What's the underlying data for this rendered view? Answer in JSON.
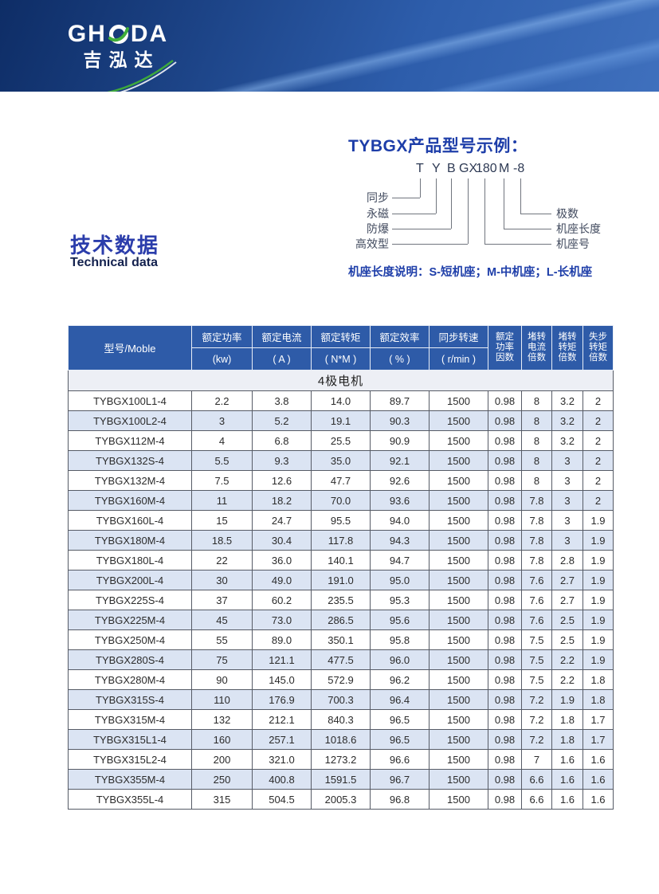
{
  "brand": {
    "logo_gh": "GH",
    "logo_da": "DA",
    "logo_cn": "吉泓达",
    "accent_green": "#3fae39"
  },
  "diagram": {
    "title": "TYBGX产品型号示例：",
    "parts": [
      "T",
      "Y",
      "B",
      "GX",
      "180",
      "M",
      "-8"
    ],
    "left_labels": [
      "同步",
      "永磁",
      "防爆",
      "高效型"
    ],
    "right_labels": [
      "极数",
      "机座长度",
      "机座号"
    ],
    "note": "机座长度说明：S-短机座；M-中机座；L-长机座"
  },
  "section_heading": {
    "cn": "技术数据",
    "en": "Technical data"
  },
  "table": {
    "model_header": "型号/Moble",
    "groups": [
      {
        "label": "额定功率",
        "unit": "(kw)"
      },
      {
        "label": "额定电流",
        "unit": "( A )"
      },
      {
        "label": "额定转矩",
        "unit": "( N*M )"
      },
      {
        "label": "额定效率",
        "unit": "( % )"
      },
      {
        "label": "同步转速",
        "unit": "( r/min )"
      }
    ],
    "narrow_headers": [
      "额定\n功率\n因数",
      "堵转\n电流\n倍数",
      "堵转\n转矩\n倍数",
      "失步\n转矩\n倍数"
    ],
    "section_row": "4极电机",
    "rows": [
      [
        "TYBGX100L1-4",
        "2.2",
        "3.8",
        "14.0",
        "89.7",
        "1500",
        "0.98",
        "8",
        "3.2",
        "2"
      ],
      [
        "TYBGX100L2-4",
        "3",
        "5.2",
        "19.1",
        "90.3",
        "1500",
        "0.98",
        "8",
        "3.2",
        "2"
      ],
      [
        "TYBGX112M-4",
        "4",
        "6.8",
        "25.5",
        "90.9",
        "1500",
        "0.98",
        "8",
        "3.2",
        "2"
      ],
      [
        "TYBGX132S-4",
        "5.5",
        "9.3",
        "35.0",
        "92.1",
        "1500",
        "0.98",
        "8",
        "3",
        "2"
      ],
      [
        "TYBGX132M-4",
        "7.5",
        "12.6",
        "47.7",
        "92.6",
        "1500",
        "0.98",
        "8",
        "3",
        "2"
      ],
      [
        "TYBGX160M-4",
        "11",
        "18.2",
        "70.0",
        "93.6",
        "1500",
        "0.98",
        "7.8",
        "3",
        "2"
      ],
      [
        "TYBGX160L-4",
        "15",
        "24.7",
        "95.5",
        "94.0",
        "1500",
        "0.98",
        "7.8",
        "3",
        "1.9"
      ],
      [
        "TYBGX180M-4",
        "18.5",
        "30.4",
        "117.8",
        "94.3",
        "1500",
        "0.98",
        "7.8",
        "3",
        "1.9"
      ],
      [
        "TYBGX180L-4",
        "22",
        "36.0",
        "140.1",
        "94.7",
        "1500",
        "0.98",
        "7.8",
        "2.8",
        "1.9"
      ],
      [
        "TYBGX200L-4",
        "30",
        "49.0",
        "191.0",
        "95.0",
        "1500",
        "0.98",
        "7.6",
        "2.7",
        "1.9"
      ],
      [
        "TYBGX225S-4",
        "37",
        "60.2",
        "235.5",
        "95.3",
        "1500",
        "0.98",
        "7.6",
        "2.7",
        "1.9"
      ],
      [
        "TYBGX225M-4",
        "45",
        "73.0",
        "286.5",
        "95.6",
        "1500",
        "0.98",
        "7.6",
        "2.5",
        "1.9"
      ],
      [
        "TYBGX250M-4",
        "55",
        "89.0",
        "350.1",
        "95.8",
        "1500",
        "0.98",
        "7.5",
        "2.5",
        "1.9"
      ],
      [
        "TYBGX280S-4",
        "75",
        "121.1",
        "477.5",
        "96.0",
        "1500",
        "0.98",
        "7.5",
        "2.2",
        "1.9"
      ],
      [
        "TYBGX280M-4",
        "90",
        "145.0",
        "572.9",
        "96.2",
        "1500",
        "0.98",
        "7.5",
        "2.2",
        "1.8"
      ],
      [
        "TYBGX315S-4",
        "110",
        "176.9",
        "700.3",
        "96.4",
        "1500",
        "0.98",
        "7.2",
        "1.9",
        "1.8"
      ],
      [
        "TYBGX315M-4",
        "132",
        "212.1",
        "840.3",
        "96.5",
        "1500",
        "0.98",
        "7.2",
        "1.8",
        "1.7"
      ],
      [
        "TYBGX315L1-4",
        "160",
        "257.1",
        "1018.6",
        "96.5",
        "1500",
        "0.98",
        "7.2",
        "1.8",
        "1.7"
      ],
      [
        "TYBGX315L2-4",
        "200",
        "321.0",
        "1273.2",
        "96.6",
        "1500",
        "0.98",
        "7",
        "1.6",
        "1.6"
      ],
      [
        "TYBGX355M-4",
        "250",
        "400.8",
        "1591.5",
        "96.7",
        "1500",
        "0.98",
        "6.6",
        "1.6",
        "1.6"
      ],
      [
        "TYBGX355L-4",
        "315",
        "504.5",
        "2005.3",
        "96.8",
        "1500",
        "0.98",
        "6.6",
        "1.6",
        "1.6"
      ]
    ]
  },
  "colors": {
    "header_blue": "#2e5ba8",
    "row_alt_blue": "#dbe4f3",
    "banner_dark": "#0e2d66",
    "banner_light": "#3f70bd",
    "title_blue": "#1e3ea9"
  }
}
